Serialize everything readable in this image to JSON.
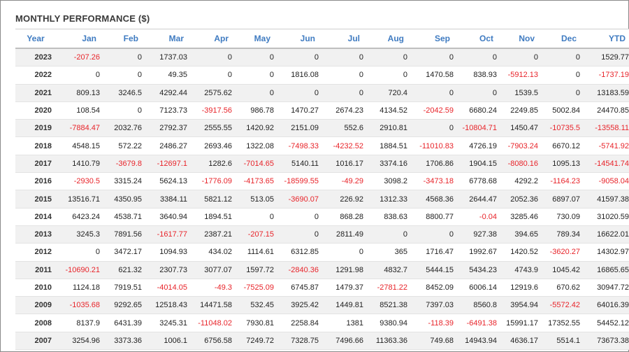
{
  "title": "MONTHLY PERFORMANCE ($)",
  "colors": {
    "negative": "#e8242a",
    "header": "#3f7bc1",
    "stripe": "#f1f1f1"
  },
  "columns": [
    "Year",
    "Jan",
    "Feb",
    "Mar",
    "Apr",
    "May",
    "Jun",
    "Jul",
    "Aug",
    "Sep",
    "Oct",
    "Nov",
    "Dec",
    "YTD"
  ],
  "rows": [
    [
      "2023",
      "-207.26",
      "0",
      "1737.03",
      "0",
      "0",
      "0",
      "0",
      "0",
      "0",
      "0",
      "0",
      "0",
      "1529.77"
    ],
    [
      "2022",
      "0",
      "0",
      "49.35",
      "0",
      "0",
      "1816.08",
      "0",
      "0",
      "1470.58",
      "838.93",
      "-5912.13",
      "0",
      "-1737.19"
    ],
    [
      "2021",
      "809.13",
      "3246.5",
      "4292.44",
      "2575.62",
      "0",
      "0",
      "0",
      "720.4",
      "0",
      "0",
      "1539.5",
      "0",
      "13183.59"
    ],
    [
      "2020",
      "108.54",
      "0",
      "7123.73",
      "-3917.56",
      "986.78",
      "1470.27",
      "2674.23",
      "4134.52",
      "-2042.59",
      "6680.24",
      "2249.85",
      "5002.84",
      "24470.85"
    ],
    [
      "2019",
      "-7884.47",
      "2032.76",
      "2792.37",
      "2555.55",
      "1420.92",
      "2151.09",
      "552.6",
      "2910.81",
      "0",
      "-10804.71",
      "1450.47",
      "-10735.5",
      "-13558.11"
    ],
    [
      "2018",
      "4548.15",
      "572.22",
      "2486.27",
      "2693.46",
      "1322.08",
      "-7498.33",
      "-4232.52",
      "1884.51",
      "-11010.83",
      "4726.19",
      "-7903.24",
      "6670.12",
      "-5741.92"
    ],
    [
      "2017",
      "1410.79",
      "-3679.8",
      "-12697.1",
      "1282.6",
      "-7014.65",
      "5140.11",
      "1016.17",
      "3374.16",
      "1706.86",
      "1904.15",
      "-8080.16",
      "1095.13",
      "-14541.74"
    ],
    [
      "2016",
      "-2930.5",
      "3315.24",
      "5624.13",
      "-1776.09",
      "-4173.65",
      "-18599.55",
      "-49.29",
      "3098.2",
      "-3473.18",
      "6778.68",
      "4292.2",
      "-1164.23",
      "-9058.04"
    ],
    [
      "2015",
      "13516.71",
      "4350.95",
      "3384.11",
      "5821.12",
      "513.05",
      "-3690.07",
      "226.92",
      "1312.33",
      "4568.36",
      "2644.47",
      "2052.36",
      "6897.07",
      "41597.38"
    ],
    [
      "2014",
      "6423.24",
      "4538.71",
      "3640.94",
      "1894.51",
      "0",
      "0",
      "868.28",
      "838.63",
      "8800.77",
      "-0.04",
      "3285.46",
      "730.09",
      "31020.59"
    ],
    [
      "2013",
      "3245.3",
      "7891.56",
      "-1617.77",
      "2387.21",
      "-207.15",
      "0",
      "2811.49",
      "0",
      "0",
      "927.38",
      "394.65",
      "789.34",
      "16622.01"
    ],
    [
      "2012",
      "0",
      "3472.17",
      "1094.93",
      "434.02",
      "1114.61",
      "6312.85",
      "0",
      "365",
      "1716.47",
      "1992.67",
      "1420.52",
      "-3620.27",
      "14302.97"
    ],
    [
      "2011",
      "-10690.21",
      "621.32",
      "2307.73",
      "3077.07",
      "1597.72",
      "-2840.36",
      "1291.98",
      "4832.7",
      "5444.15",
      "5434.23",
      "4743.9",
      "1045.42",
      "16865.65"
    ],
    [
      "2010",
      "1124.18",
      "7919.51",
      "-4014.05",
      "-49.3",
      "-7525.09",
      "6745.87",
      "1479.37",
      "-2781.22",
      "8452.09",
      "6006.14",
      "12919.6",
      "670.62",
      "30947.72"
    ],
    [
      "2009",
      "-1035.68",
      "9292.65",
      "12518.43",
      "14471.58",
      "532.45",
      "3925.42",
      "1449.81",
      "8521.38",
      "7397.03",
      "8560.8",
      "3954.94",
      "-5572.42",
      "64016.39"
    ],
    [
      "2008",
      "8137.9",
      "6431.39",
      "3245.31",
      "-11048.02",
      "7930.81",
      "2258.84",
      "1381",
      "9380.94",
      "-118.39",
      "-6491.38",
      "15991.17",
      "17352.55",
      "54452.12"
    ],
    [
      "2007",
      "3254.96",
      "3373.36",
      "1006.1",
      "6756.58",
      "7249.72",
      "7328.75",
      "7496.66",
      "11363.36",
      "749.68",
      "14943.94",
      "4636.17",
      "5514.1",
      "73673.38"
    ]
  ]
}
